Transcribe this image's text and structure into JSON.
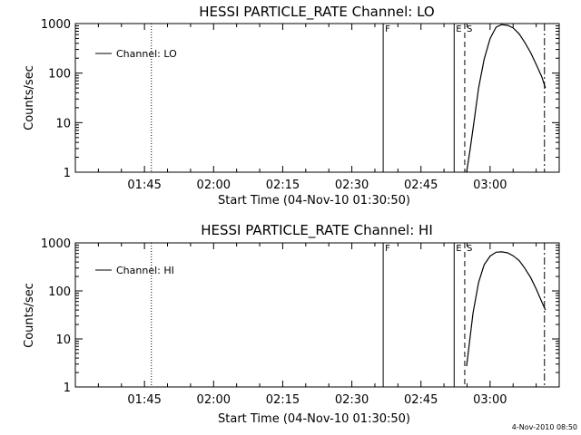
{
  "chart_data": [
    {
      "type": "line",
      "title": "HESSI PARTICLE_RATE Channel: LO",
      "xlabel": "Start Time (04-Nov-10 01:30:50)",
      "ylabel": "Counts/sec",
      "yscale": "log",
      "xlim_min": [
        0,
        105
      ],
      "ylim": [
        1,
        1000
      ],
      "xticks": [
        {
          "min": 15,
          "label": "01:45"
        },
        {
          "min": 30,
          "label": "02:00"
        },
        {
          "min": 45,
          "label": "02:15"
        },
        {
          "min": 60,
          "label": "02:30"
        },
        {
          "min": 75,
          "label": "02:45"
        },
        {
          "min": 90,
          "label": "03:00"
        }
      ],
      "yticks": [
        {
          "v": 1,
          "label": "1"
        },
        {
          "v": 10,
          "label": "10"
        },
        {
          "v": 100,
          "label": "100"
        },
        {
          "v": 1000,
          "label": "1000"
        }
      ],
      "legend": "Channel: LO",
      "markers": [
        {
          "min": 16.5,
          "style": "dotted",
          "label": ""
        },
        {
          "min": 66.8,
          "style": "solid",
          "label": "F"
        },
        {
          "min": 82.2,
          "style": "solid",
          "label": "E"
        },
        {
          "min": 84.5,
          "style": "dashed",
          "label": "S"
        },
        {
          "min": 101.8,
          "style": "dashdot",
          "label": ""
        }
      ],
      "series": [
        {
          "name": "Channel: LO",
          "x_min": [
            84.9,
            85.7,
            86.6,
            87.5,
            88.7,
            90.0,
            91.3,
            92.5,
            93.8,
            95.0,
            96.3,
            97.5,
            98.8,
            100.0,
            101.2,
            102.0
          ],
          "y": [
            1,
            3,
            12,
            50,
            190,
            500,
            850,
            950,
            920,
            820,
            620,
            420,
            260,
            150,
            85,
            50
          ]
        }
      ]
    },
    {
      "type": "line",
      "title": "HESSI PARTICLE_RATE Channel: HI",
      "xlabel": "Start Time (04-Nov-10 01:30:50)",
      "ylabel": "Counts/sec",
      "yscale": "log",
      "xlim_min": [
        0,
        105
      ],
      "ylim": [
        1,
        1000
      ],
      "xticks": [
        {
          "min": 15,
          "label": "01:45"
        },
        {
          "min": 30,
          "label": "02:00"
        },
        {
          "min": 45,
          "label": "02:15"
        },
        {
          "min": 60,
          "label": "02:30"
        },
        {
          "min": 75,
          "label": "02:45"
        },
        {
          "min": 90,
          "label": "03:00"
        }
      ],
      "yticks": [
        {
          "v": 1,
          "label": "1"
        },
        {
          "v": 10,
          "label": "10"
        },
        {
          "v": 100,
          "label": "100"
        },
        {
          "v": 1000,
          "label": "1000"
        }
      ],
      "legend": "Channel: HI",
      "markers": [
        {
          "min": 16.5,
          "style": "dotted",
          "label": ""
        },
        {
          "min": 66.8,
          "style": "solid",
          "label": "F"
        },
        {
          "min": 82.2,
          "style": "solid",
          "label": "E"
        },
        {
          "min": 84.5,
          "style": "dashed",
          "label": "S"
        },
        {
          "min": 101.8,
          "style": "dashdot",
          "label": ""
        }
      ],
      "series": [
        {
          "name": "Channel: HI",
          "x_min": [
            84.9,
            85.5,
            86.3,
            87.5,
            88.7,
            90.0,
            91.3,
            92.5,
            93.8,
            95.0,
            96.3,
            97.5,
            98.8,
            100.0,
            101.2,
            102.0
          ],
          "y": [
            2.7,
            8,
            35,
            150,
            350,
            530,
            640,
            650,
            620,
            540,
            430,
            300,
            190,
            110,
            60,
            40
          ]
        }
      ]
    }
  ],
  "footer_stamp": "4-Nov-2010 08:50"
}
